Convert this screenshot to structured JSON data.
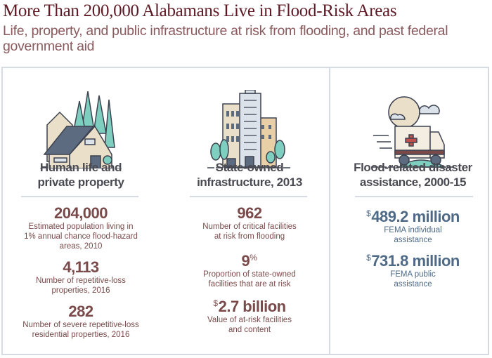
{
  "title": "More Than 200,000 Alabamans Live in Flood-Risk Areas",
  "subtitle": "Life, property, and public infrastructure at risk from flooding, and past federal government aid",
  "colors": {
    "title": "#5e1a24",
    "stat": "#7a4a4a",
    "stat_blue": "#4e6a87",
    "border": "#d6dae3"
  },
  "columns": [
    {
      "icon": "house-with-trees-icon",
      "heading_line1": "Human life and",
      "heading_line2": "private property",
      "stats": [
        {
          "value": "204,000",
          "desc_line1": "Estimated population living in",
          "desc_line2": "1% annual chance flood-hazard",
          "desc_line3": "areas, 2010"
        },
        {
          "value": "4,113",
          "desc_line1": "Number of repetitive-loss",
          "desc_line2": "properties, 2016"
        },
        {
          "value": "282",
          "desc_line1": "Number of severe repetitive-loss",
          "desc_line2": "residential properties, 2016"
        }
      ]
    },
    {
      "icon": "city-buildings-icon",
      "heading_line1": "State-owned",
      "heading_line2": "infrastructure, 2013",
      "stats": [
        {
          "value": "962",
          "desc_line1": "Number of critical facilities",
          "desc_line2": "at risk from flooding"
        },
        {
          "value": "9",
          "suffix": "%",
          "desc_line1": "Proportion of state-owned",
          "desc_line2": "facilities that are at risk"
        },
        {
          "prefix": "$",
          "value": "2.7 billion",
          "desc_line1": "Value of at-risk facilities",
          "desc_line2": "and content"
        }
      ]
    },
    {
      "icon": "ambulance-icon",
      "heading_line1": "Flood-related disaster",
      "heading_line2": "assistance, 2000-15",
      "stats": [
        {
          "prefix": "$",
          "value": "489.2 million",
          "desc_line1": "FEMA individual",
          "desc_line2": "assistance"
        },
        {
          "prefix": "$",
          "value": "731.8 million",
          "desc_line1": "FEMA public",
          "desc_line2": "assistance"
        }
      ]
    }
  ]
}
